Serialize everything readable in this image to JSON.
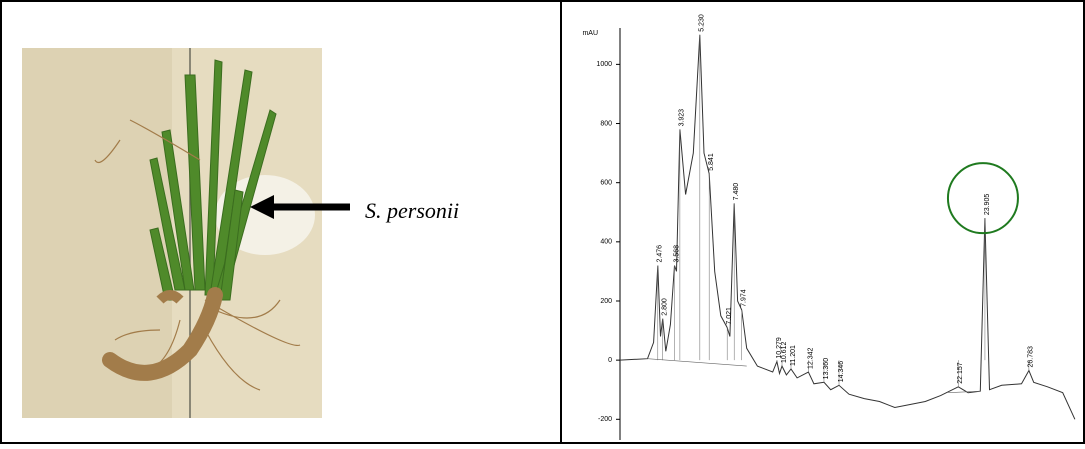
{
  "caption_label": "S. personii",
  "chart_data": {
    "type": "line",
    "y_label": "mAU",
    "x": [
      0,
      1.8,
      2.2,
      2.476,
      2.65,
      2.8,
      3.0,
      3.3,
      3.568,
      3.7,
      3.923,
      4.3,
      4.8,
      5.23,
      5.5,
      5.841,
      6.2,
      6.6,
      7.021,
      7.2,
      7.48,
      7.7,
      7.974,
      8.3,
      9,
      10,
      10.279,
      10.45,
      10.612,
      10.9,
      11.201,
      11.6,
      12.342,
      12.7,
      13.36,
      13.8,
      14.346,
      15,
      16,
      17,
      18,
      19,
      20,
      21,
      22.157,
      22.8,
      23.6,
      23.905,
      24.2,
      25,
      26.3,
      26.783,
      27.1,
      28,
      29,
      29.8
    ],
    "values": [
      0,
      5,
      60,
      320,
      80,
      140,
      30,
      120,
      320,
      300,
      780,
      560,
      700,
      1100,
      700,
      630,
      300,
      150,
      110,
      80,
      530,
      200,
      170,
      40,
      -20,
      -40,
      -5,
      -45,
      -20,
      -50,
      -30,
      -60,
      -40,
      -80,
      -75,
      -100,
      -85,
      -115,
      -130,
      -140,
      -160,
      -150,
      -140,
      -120,
      -90,
      -110,
      -105,
      480,
      -100,
      -85,
      -80,
      -35,
      -75,
      -90,
      -110,
      -200
    ],
    "color": "#333333",
    "peaks": [
      {
        "x": 2.476,
        "y": 320
      },
      {
        "x": 2.8,
        "label": "2.800",
        "y": 140
      },
      {
        "x": 3.568,
        "y": 320
      },
      {
        "x": 3.923,
        "y": 780
      },
      {
        "x": 5.23,
        "label": "5.230",
        "y": 1100
      },
      {
        "x": 5.841,
        "y": 630
      },
      {
        "x": 7.021,
        "y": 110
      },
      {
        "x": 7.48,
        "label": "7.480",
        "y": 530
      },
      {
        "x": 7.974,
        "y": 170
      },
      {
        "x": 10.279,
        "y": -5
      },
      {
        "x": 10.612,
        "y": -20
      },
      {
        "x": 11.201,
        "y": -30
      },
      {
        "x": 12.342,
        "y": -40
      },
      {
        "x": 13.36,
        "label": "13.360",
        "y": -75
      },
      {
        "x": 14.346,
        "y": -85
      },
      {
        "x": 22.157,
        "y": -90
      },
      {
        "x": 23.905,
        "y": 480
      },
      {
        "x": 26.783,
        "y": -35
      }
    ],
    "xlim": [
      0,
      30
    ],
    "ylim": [
      -270,
      1150
    ],
    "yticks": [
      -200,
      0,
      200,
      400,
      600,
      800,
      1000
    ]
  }
}
